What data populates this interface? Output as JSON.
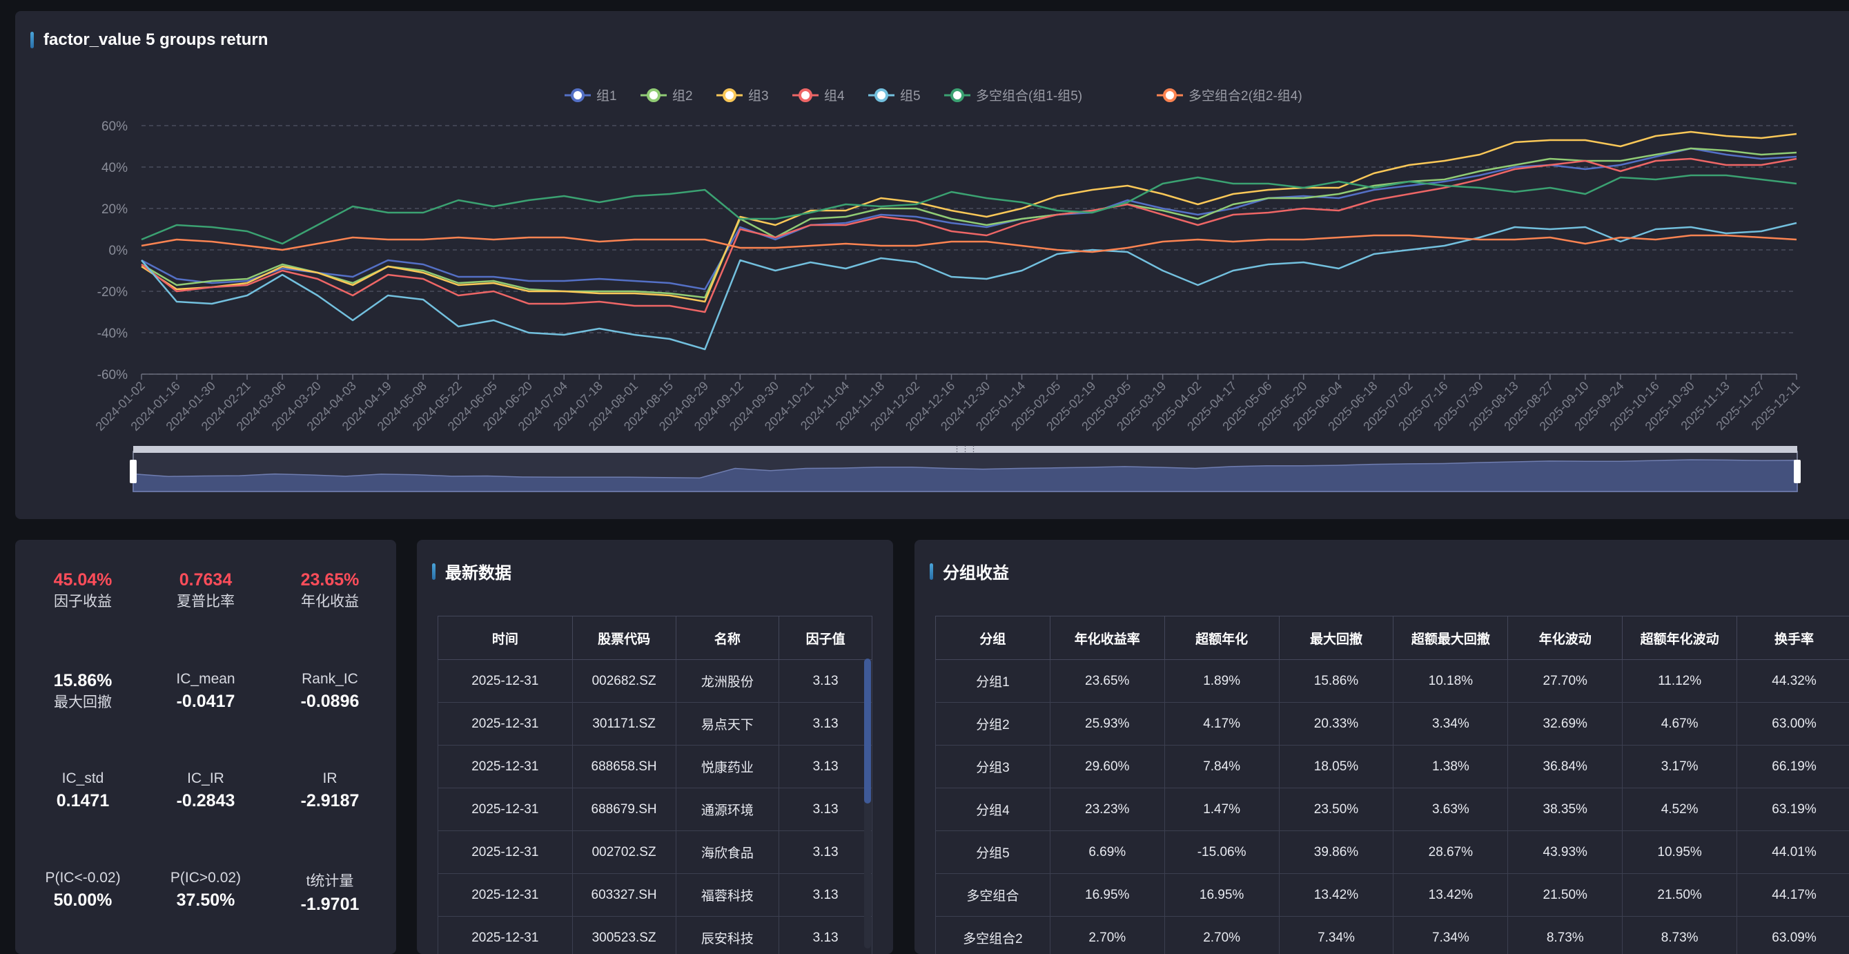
{
  "chart_panel": {
    "title": "factor_value 5 groups return"
  },
  "chart_data": {
    "type": "line",
    "ylim": [
      -60,
      60
    ],
    "y_ticks": [
      "60%",
      "40%",
      "20%",
      "0%",
      "-20%",
      "-40%",
      "-60%"
    ],
    "x_ticks": [
      "2024-01-02",
      "2024-01-16",
      "2024-01-30",
      "2024-02-21",
      "2024-03-06",
      "2024-03-20",
      "2024-04-03",
      "2024-04-19",
      "2024-05-08",
      "2024-05-22",
      "2024-06-05",
      "2024-06-20",
      "2024-07-04",
      "2024-07-18",
      "2024-08-01",
      "2024-08-15",
      "2024-08-29",
      "2024-09-12",
      "2024-09-30",
      "2024-10-21",
      "2024-11-04",
      "2024-11-18",
      "2024-12-02",
      "2024-12-16",
      "2024-12-30",
      "2025-01-14",
      "2025-02-05",
      "2025-02-19",
      "2025-03-05",
      "2025-03-19",
      "2025-04-02",
      "2025-04-17",
      "2025-05-06",
      "2025-05-20",
      "2025-06-04",
      "2025-06-18",
      "2025-07-02",
      "2025-07-16",
      "2025-07-30",
      "2025-08-13",
      "2025-08-27",
      "2025-09-10",
      "2025-09-24",
      "2025-10-16",
      "2025-10-30",
      "2025-11-13",
      "2025-11-27",
      "2025-12-11"
    ],
    "grid": true,
    "legend_position": "top",
    "series": [
      {
        "name": "组1",
        "color": "#5470c6",
        "values": [
          -5,
          -14,
          -16,
          -15,
          -9,
          -11,
          -13,
          -5,
          -7,
          -13,
          -13,
          -15,
          -15,
          -14,
          -15,
          -16,
          -19,
          11,
          5,
          12,
          13,
          17,
          16,
          13,
          11,
          15,
          17,
          18,
          24,
          20,
          17,
          20,
          25,
          26,
          25,
          29,
          31,
          33,
          36,
          40,
          41,
          39,
          41,
          45,
          49,
          46,
          44,
          45
        ]
      },
      {
        "name": "组2",
        "color": "#91cc75",
        "values": [
          -7,
          -17,
          -15,
          -14,
          -7,
          -11,
          -16,
          -8,
          -10,
          -16,
          -15,
          -19,
          -20,
          -20,
          -20,
          -21,
          -23,
          15,
          6,
          15,
          16,
          20,
          20,
          15,
          12,
          15,
          17,
          19,
          22,
          19,
          15,
          22,
          25,
          25,
          27,
          31,
          33,
          34,
          38,
          41,
          44,
          43,
          43,
          46,
          49,
          48,
          46,
          47
        ]
      },
      {
        "name": "组3",
        "color": "#fac858",
        "values": [
          -8,
          -19,
          -18,
          -16,
          -8,
          -11,
          -17,
          -8,
          -11,
          -17,
          -16,
          -20,
          -20,
          -21,
          -21,
          -22,
          -25,
          16,
          12,
          19,
          19,
          25,
          23,
          19,
          16,
          20,
          26,
          29,
          31,
          27,
          22,
          27,
          29,
          30,
          30,
          37,
          41,
          43,
          46,
          52,
          53,
          53,
          50,
          55,
          57,
          55,
          54,
          56
        ]
      },
      {
        "name": "组4",
        "color": "#ee6666",
        "values": [
          -7,
          -20,
          -18,
          -17,
          -10,
          -14,
          -22,
          -12,
          -14,
          -22,
          -20,
          -26,
          -26,
          -25,
          -27,
          -27,
          -30,
          10,
          6,
          12,
          12,
          16,
          14,
          9,
          7,
          13,
          17,
          19,
          22,
          17,
          12,
          17,
          18,
          20,
          19,
          24,
          27,
          30,
          34,
          39,
          41,
          43,
          38,
          43,
          44,
          41,
          41,
          44
        ]
      },
      {
        "name": "组5",
        "color": "#73c0de",
        "values": [
          -5,
          -25,
          -26,
          -22,
          -12,
          -22,
          -34,
          -22,
          -24,
          -37,
          -34,
          -40,
          -41,
          -38,
          -41,
          -43,
          -48,
          -5,
          -10,
          -6,
          -9,
          -4,
          -6,
          -13,
          -14,
          -10,
          -2,
          0,
          -1,
          -10,
          -17,
          -10,
          -7,
          -6,
          -9,
          -2,
          0,
          2,
          6,
          11,
          10,
          11,
          4,
          10,
          11,
          8,
          9,
          13
        ]
      },
      {
        "name": "多空组合(组1-组5)",
        "color": "#3ba272",
        "values": [
          5,
          12,
          11,
          9,
          3,
          12,
          21,
          18,
          18,
          24,
          21,
          24,
          26,
          23,
          26,
          27,
          29,
          15,
          15,
          18,
          22,
          21,
          22,
          28,
          25,
          23,
          19,
          18,
          23,
          32,
          35,
          32,
          32,
          30,
          33,
          30,
          33,
          31,
          30,
          28,
          30,
          27,
          35,
          34,
          36,
          36,
          34,
          32
        ]
      },
      {
        "name": "多空组合2(组2-组4)",
        "color": "#fc8452",
        "values": [
          2,
          5,
          4,
          2,
          0,
          3,
          6,
          5,
          5,
          6,
          5,
          6,
          6,
          4,
          5,
          5,
          5,
          1,
          1,
          2,
          3,
          2,
          2,
          4,
          4,
          2,
          0,
          -1,
          1,
          4,
          5,
          4,
          5,
          5,
          6,
          7,
          7,
          6,
          5,
          5,
          6,
          3,
          6,
          5,
          7,
          7,
          6,
          5
        ]
      }
    ]
  },
  "metrics": {
    "factor_return": {
      "value": "45.04%",
      "label": "因子收益"
    },
    "sharpe": {
      "value": "0.7634",
      "label": "夏普比率"
    },
    "annual_return": {
      "value": "23.65%",
      "label": "年化收益"
    },
    "max_drawdown": {
      "value": "15.86%",
      "label": "最大回撤"
    },
    "ic_mean": {
      "label": "IC_mean",
      "value": "-0.0417"
    },
    "rank_ic": {
      "label": "Rank_IC",
      "value": "-0.0896"
    },
    "ic_std": {
      "label": "IC_std",
      "value": "0.1471"
    },
    "ic_ir": {
      "label": "IC_IR",
      "value": "-0.2843"
    },
    "ir": {
      "label": "IR",
      "value": "-2.9187"
    },
    "p_ic_lt": {
      "label": "P(IC<-0.02)",
      "value": "50.00%"
    },
    "p_ic_gt": {
      "label": "P(IC>0.02)",
      "value": "37.50%"
    },
    "t_stat": {
      "label": "t统计量",
      "value": "-1.9701"
    }
  },
  "latest": {
    "title": "最新数据",
    "headers": [
      "时间",
      "股票代码",
      "名称",
      "因子值"
    ],
    "rows": [
      [
        "2025-12-31",
        "002682.SZ",
        "龙洲股份",
        "3.13"
      ],
      [
        "2025-12-31",
        "301171.SZ",
        "易点天下",
        "3.13"
      ],
      [
        "2025-12-31",
        "688658.SH",
        "悦康药业",
        "3.13"
      ],
      [
        "2025-12-31",
        "688679.SH",
        "通源环境",
        "3.13"
      ],
      [
        "2025-12-31",
        "002702.SZ",
        "海欣食品",
        "3.13"
      ],
      [
        "2025-12-31",
        "603327.SH",
        "福蓉科技",
        "3.13"
      ],
      [
        "2025-12-31",
        "300523.SZ",
        "辰安科技",
        "3.13"
      ]
    ]
  },
  "groups": {
    "title": "分组收益",
    "headers": [
      "分组",
      "年化收益率",
      "超额年化",
      "最大回撤",
      "超额最大回撤",
      "年化波动",
      "超额年化波动",
      "换手率"
    ],
    "rows": [
      [
        "分组1",
        "23.65%",
        "1.89%",
        "15.86%",
        "10.18%",
        "27.70%",
        "11.12%",
        "44.32%"
      ],
      [
        "分组2",
        "25.93%",
        "4.17%",
        "20.33%",
        "3.34%",
        "32.69%",
        "4.67%",
        "63.00%"
      ],
      [
        "分组3",
        "29.60%",
        "7.84%",
        "18.05%",
        "1.38%",
        "36.84%",
        "3.17%",
        "66.19%"
      ],
      [
        "分组4",
        "23.23%",
        "1.47%",
        "23.50%",
        "3.63%",
        "38.35%",
        "4.52%",
        "63.19%"
      ],
      [
        "分组5",
        "6.69%",
        "-15.06%",
        "39.86%",
        "28.67%",
        "43.93%",
        "10.95%",
        "44.01%"
      ],
      [
        "多空组合",
        "16.95%",
        "16.95%",
        "13.42%",
        "13.42%",
        "21.50%",
        "21.50%",
        "44.17%"
      ],
      [
        "多空组合2",
        "2.70%",
        "2.70%",
        "7.34%",
        "7.34%",
        "8.73%",
        "8.73%",
        "63.09%"
      ]
    ]
  }
}
